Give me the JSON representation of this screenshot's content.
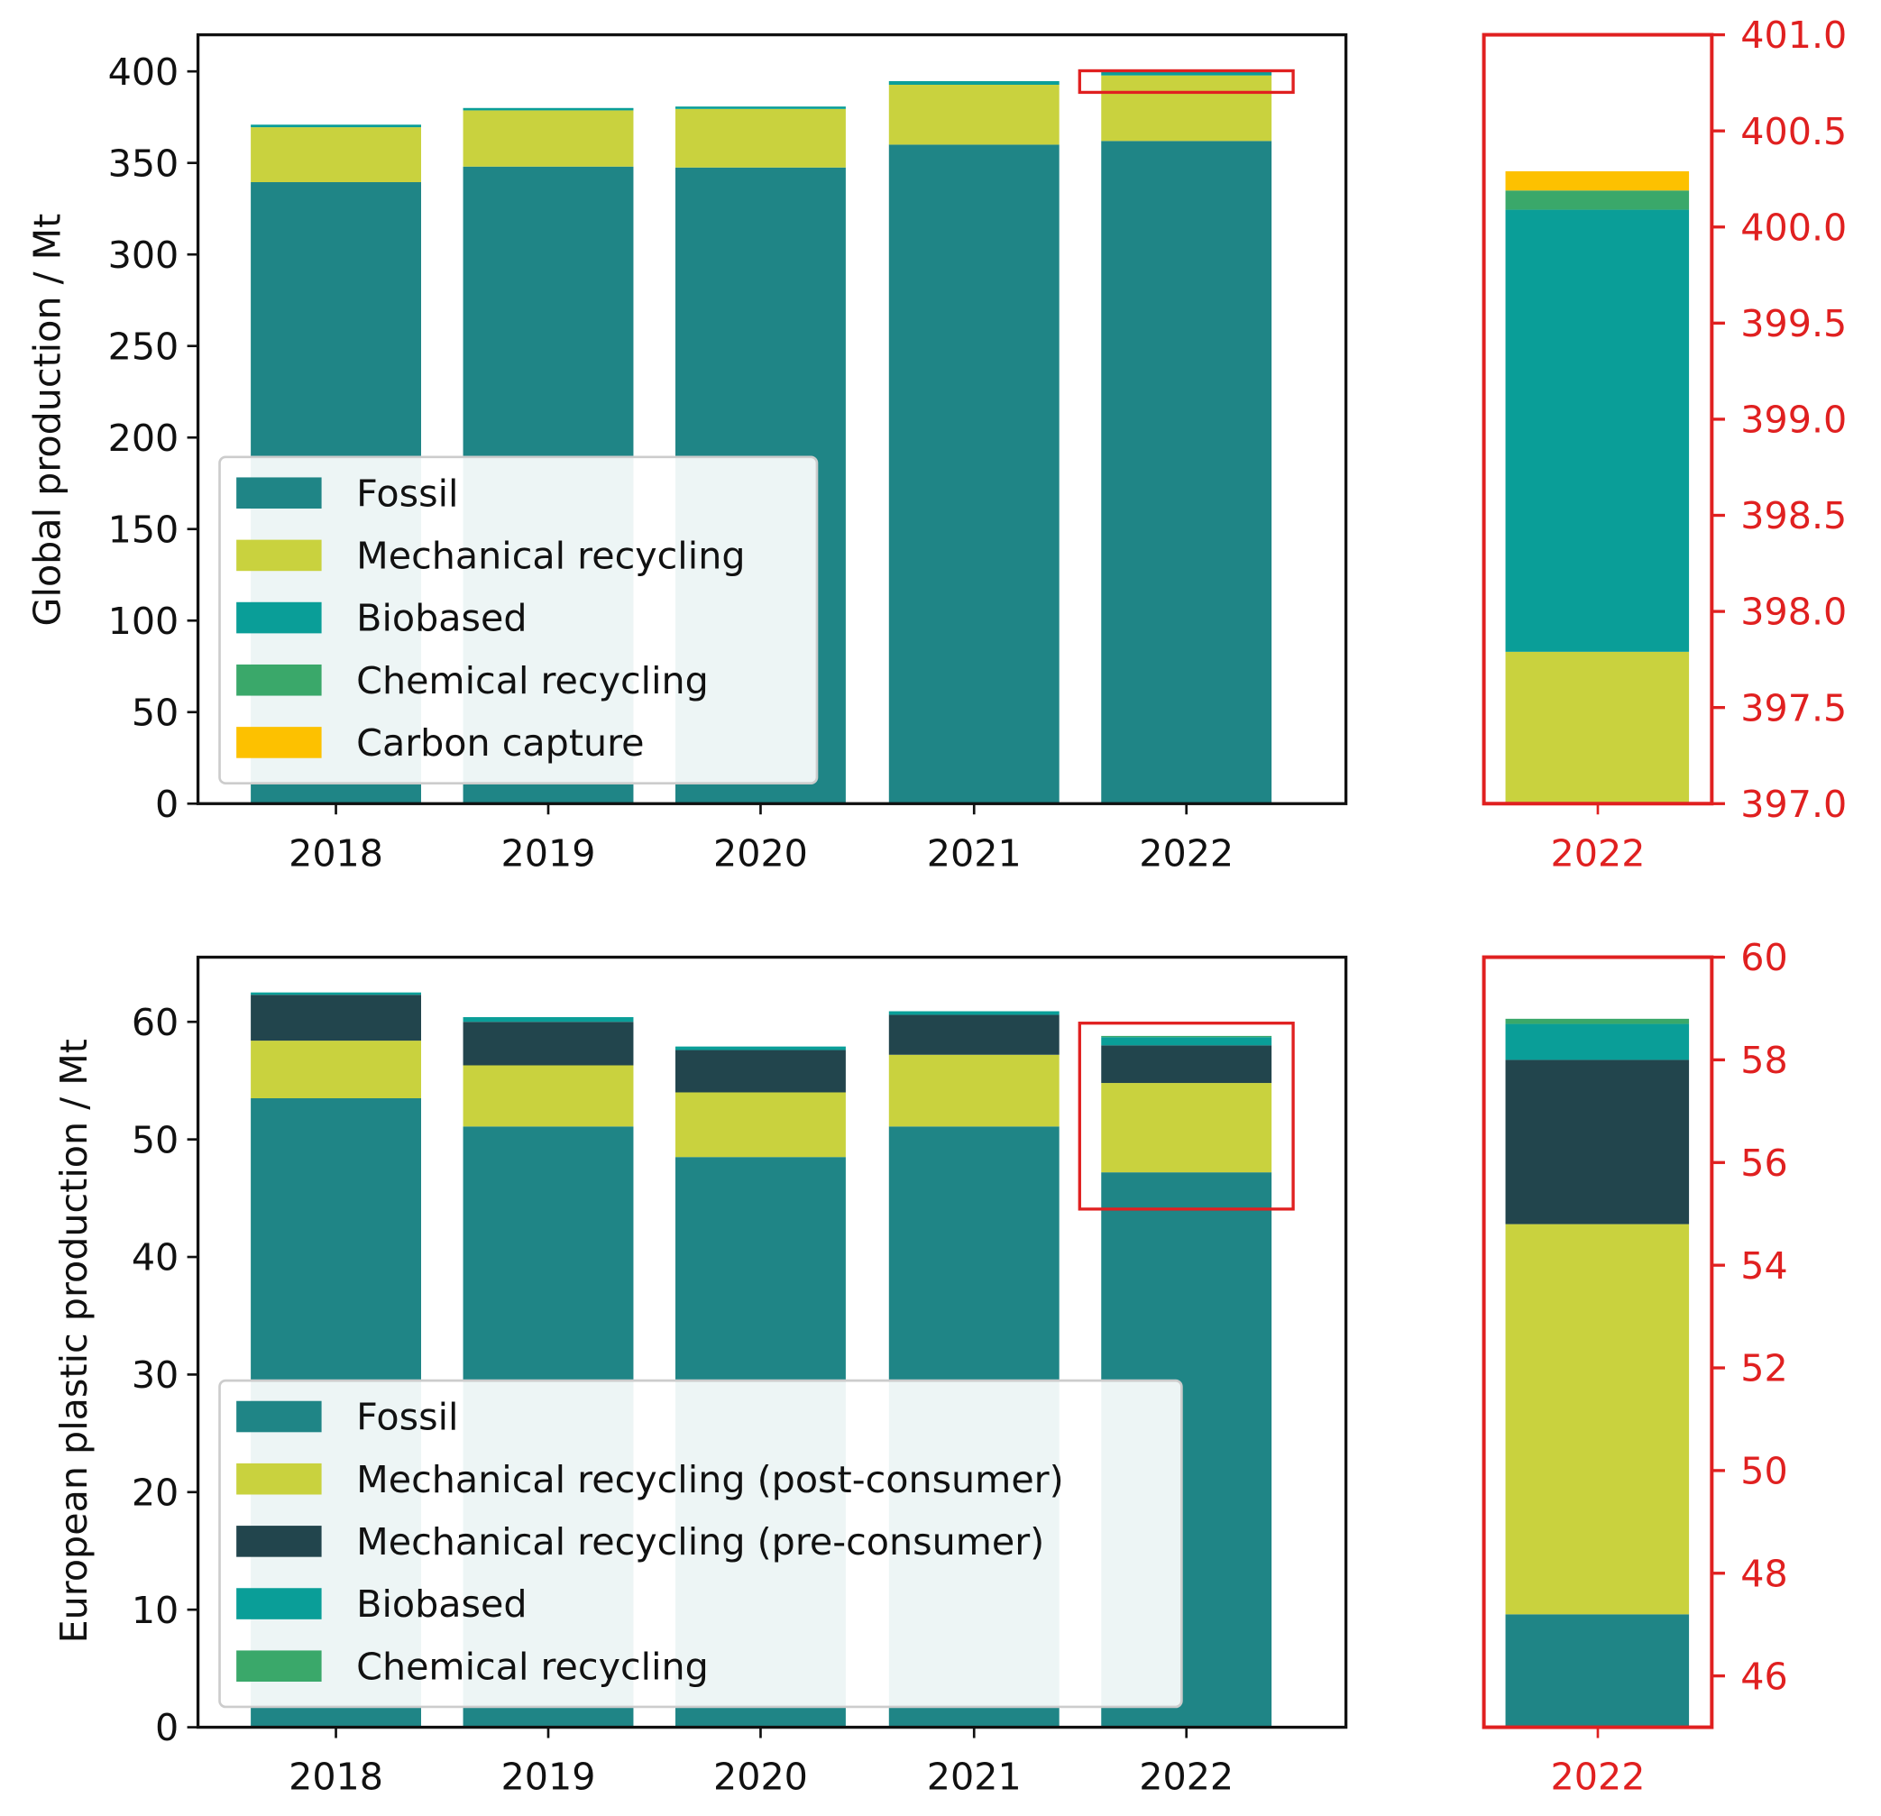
{
  "colors": {
    "fossil": "#1f8586",
    "mech": "#c9d23e",
    "mech_pre": "#22454d",
    "bio": "#0a9e98",
    "chem": "#3aa86a",
    "carbon": "#fdc100",
    "highlight": "#e02020"
  },
  "chart_data": [
    {
      "type": "bar",
      "stacked": true,
      "title": "",
      "ylabel": "Global production / Mt",
      "xlabel": "",
      "categories": [
        "2018",
        "2019",
        "2020",
        "2021",
        "2022"
      ],
      "ylim": [
        0,
        420
      ],
      "yticks": [
        "0",
        "50",
        "100",
        "150",
        "200",
        "250",
        "300",
        "350",
        "400"
      ],
      "legend_position": "lower-left",
      "series": [
        {
          "name": "Fossil",
          "color_key": "fossil",
          "values": [
            339.5,
            348,
            347.5,
            360,
            362
          ]
        },
        {
          "name": "Mechanical recycling",
          "color_key": "mech",
          "values": [
            30,
            30.7,
            32,
            32.7,
            35.79
          ]
        },
        {
          "name": "Biobased",
          "color_key": "bio",
          "values": [
            1.4,
            1.3,
            1.3,
            2.0,
            2.3
          ]
        },
        {
          "name": "Chemical recycling",
          "color_key": "chem",
          "values": [
            0,
            0,
            0,
            0,
            0.1
          ]
        },
        {
          "name": "Carbon capture",
          "color_key": "carbon",
          "values": [
            0,
            0,
            0,
            0,
            0.1
          ]
        }
      ],
      "inset": {
        "category": "2022",
        "ylim": [
          397.0,
          401.0
        ],
        "yticks": [
          "397.0",
          "397.5",
          "398.0",
          "398.5",
          "399.0",
          "399.5",
          "400.0",
          "400.5",
          "401.0"
        ]
      }
    },
    {
      "type": "bar",
      "stacked": true,
      "title": "",
      "ylabel": "European plastic production / Mt",
      "xlabel": "",
      "categories": [
        "2018",
        "2019",
        "2020",
        "2021",
        "2022"
      ],
      "ylim": [
        0,
        65.5
      ],
      "yticks": [
        "0",
        "10",
        "20",
        "30",
        "40",
        "50",
        "60"
      ],
      "legend_position": "lower-left",
      "series": [
        {
          "name": "Fossil",
          "color_key": "fossil",
          "values": [
            53.5,
            51.1,
            48.5,
            51.1,
            47.2
          ]
        },
        {
          "name": "Mechanical recycling (post-consumer)",
          "color_key": "mech",
          "values": [
            4.9,
            5.2,
            5.5,
            6.1,
            7.6
          ]
        },
        {
          "name": "Mechanical recycling (pre-consumer)",
          "color_key": "mech_pre",
          "values": [
            3.9,
            3.7,
            3.6,
            3.4,
            3.2
          ]
        },
        {
          "name": "Biobased",
          "color_key": "bio",
          "values": [
            0.2,
            0.4,
            0.3,
            0.3,
            0.7
          ]
        },
        {
          "name": "Chemical recycling",
          "color_key": "chem",
          "values": [
            0,
            0,
            0,
            0,
            0.1
          ]
        }
      ],
      "inset": {
        "category": "2022",
        "ylim": [
          45,
          60
        ],
        "yticks": [
          "46",
          "48",
          "50",
          "52",
          "54",
          "56",
          "58",
          "60"
        ]
      }
    }
  ]
}
